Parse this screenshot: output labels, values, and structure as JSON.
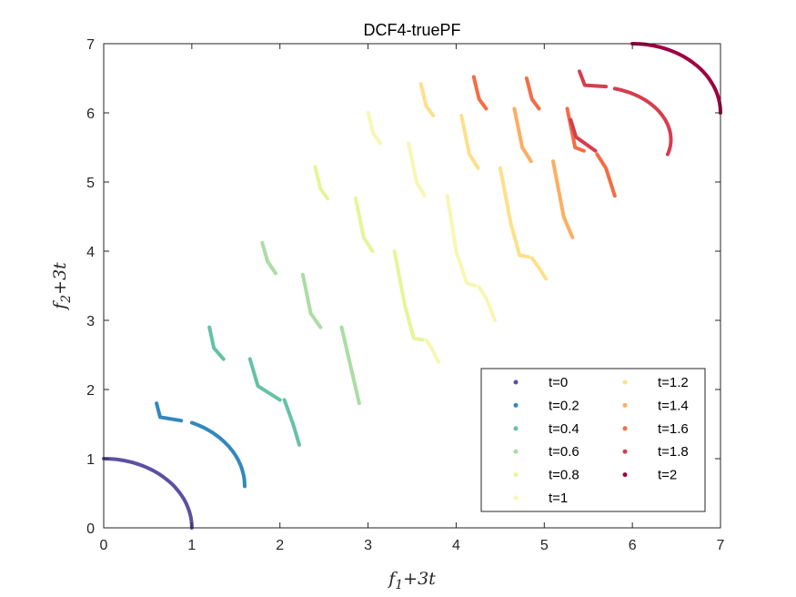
{
  "chart_data": {
    "type": "scatter",
    "title": "DCF4-truePF",
    "xlabel": {
      "main": "f",
      "sub": "1",
      "rest": "+3t"
    },
    "ylabel": {
      "main": "f",
      "sub": "2",
      "rest": "+3t"
    },
    "xlim": [
      0,
      7
    ],
    "ylim": [
      0,
      7
    ],
    "xticks": [
      0,
      1,
      2,
      3,
      4,
      5,
      6,
      7
    ],
    "yticks": [
      0,
      1,
      2,
      3,
      4,
      5,
      6,
      7
    ],
    "grid": false,
    "legend_position": "bottom-right",
    "series": [
      {
        "name": "t=0",
        "color": "#5e4fa2",
        "segments": [
          {
            "kind": "arc",
            "cx": 0.0,
            "cy": 0.0,
            "from": [
              0.0,
              1.0
            ],
            "to": [
              1.0,
              0.0
            ],
            "bulge": 1.0
          }
        ]
      },
      {
        "name": "t=0.2",
        "color": "#3288bd",
        "segments": [
          {
            "kind": "poly",
            "points": [
              [
                0.6,
                1.8
              ],
              [
                0.64,
                1.6
              ],
              [
                0.88,
                1.55
              ]
            ]
          },
          {
            "kind": "arc",
            "cx": 0.6,
            "cy": 0.6,
            "from": [
              1.0,
              1.52
            ],
            "to": [
              1.6,
              0.6
            ],
            "bulge": 1.0
          }
        ]
      },
      {
        "name": "t=0.4",
        "color": "#66c2a5",
        "segments": [
          {
            "kind": "poly",
            "points": [
              [
                1.2,
                2.9
              ],
              [
                1.25,
                2.6
              ],
              [
                1.36,
                2.44
              ]
            ]
          },
          {
            "kind": "poly",
            "points": [
              [
                1.66,
                2.44
              ],
              [
                1.75,
                2.05
              ],
              [
                2.0,
                1.85
              ]
            ]
          },
          {
            "kind": "poly",
            "points": [
              [
                2.05,
                1.85
              ],
              [
                2.15,
                1.5
              ],
              [
                2.22,
                1.2
              ]
            ]
          }
        ]
      },
      {
        "name": "t=0.6",
        "color": "#abdda4",
        "segments": [
          {
            "kind": "poly",
            "points": [
              [
                1.8,
                4.12
              ],
              [
                1.86,
                3.85
              ],
              [
                1.95,
                3.68
              ]
            ]
          },
          {
            "kind": "poly",
            "points": [
              [
                2.26,
                3.66
              ],
              [
                2.35,
                3.1
              ],
              [
                2.46,
                2.9
              ]
            ]
          },
          {
            "kind": "poly",
            "points": [
              [
                2.7,
                2.9
              ],
              [
                2.8,
                2.35
              ],
              [
                2.9,
                1.8
              ]
            ]
          }
        ]
      },
      {
        "name": "t=0.8",
        "color": "#e6f598",
        "segments": [
          {
            "kind": "poly",
            "points": [
              [
                2.4,
                5.22
              ],
              [
                2.46,
                4.9
              ],
              [
                2.54,
                4.76
              ]
            ]
          },
          {
            "kind": "poly",
            "points": [
              [
                2.86,
                4.76
              ],
              [
                2.95,
                4.2
              ],
              [
                3.05,
                4.0
              ]
            ]
          },
          {
            "kind": "poly",
            "points": [
              [
                3.3,
                4.0
              ],
              [
                3.42,
                3.2
              ],
              [
                3.52,
                2.74
              ],
              [
                3.62,
                2.72
              ]
            ]
          }
        ]
      },
      {
        "name": "t=1",
        "color": "#f7f7b4",
        "segments": [
          {
            "kind": "poly",
            "points": [
              [
                3.0,
                6.0
              ],
              [
                3.06,
                5.7
              ],
              [
                3.14,
                5.56
              ]
            ]
          },
          {
            "kind": "poly",
            "points": [
              [
                3.46,
                5.56
              ],
              [
                3.55,
                5.0
              ],
              [
                3.64,
                4.8
              ]
            ]
          },
          {
            "kind": "poly",
            "points": [
              [
                3.9,
                4.8
              ],
              [
                4.0,
                4.0
              ],
              [
                4.12,
                3.54
              ],
              [
                4.22,
                3.5
              ]
            ]
          },
          {
            "kind": "poly",
            "points": [
              [
                3.66,
                2.72
              ],
              [
                3.72,
                2.6
              ],
              [
                3.8,
                2.4
              ]
            ]
          },
          {
            "kind": "poly",
            "points": [
              [
                4.26,
                3.48
              ],
              [
                4.35,
                3.3
              ],
              [
                4.44,
                3.0
              ]
            ]
          }
        ]
      },
      {
        "name": "t=1.2",
        "color": "#fee08b",
        "segments": [
          {
            "kind": "poly",
            "points": [
              [
                3.6,
                6.42
              ],
              [
                3.66,
                6.1
              ],
              [
                3.74,
                5.96
              ]
            ]
          },
          {
            "kind": "poly",
            "points": [
              [
                4.06,
                5.96
              ],
              [
                4.15,
                5.4
              ],
              [
                4.25,
                5.2
              ]
            ]
          },
          {
            "kind": "poly",
            "points": [
              [
                4.5,
                5.2
              ],
              [
                4.62,
                4.4
              ],
              [
                4.72,
                3.94
              ],
              [
                4.82,
                3.92
              ]
            ]
          },
          {
            "kind": "poly",
            "points": [
              [
                4.86,
                3.9
              ],
              [
                4.94,
                3.76
              ],
              [
                5.02,
                3.6
              ]
            ]
          }
        ]
      },
      {
        "name": "t=1.4",
        "color": "#fdae61",
        "segments": [
          {
            "kind": "poly",
            "points": [
              [
                4.66,
                6.06
              ],
              [
                4.75,
                5.5
              ],
              [
                4.85,
                5.3
              ]
            ]
          },
          {
            "kind": "poly",
            "points": [
              [
                5.1,
                5.3
              ],
              [
                5.22,
                4.5
              ],
              [
                5.32,
                4.2
              ]
            ]
          }
        ]
      },
      {
        "name": "t=1.6",
        "color": "#f46d43",
        "segments": [
          {
            "kind": "poly",
            "points": [
              [
                4.2,
                6.52
              ],
              [
                4.26,
                6.2
              ],
              [
                4.34,
                6.06
              ]
            ]
          },
          {
            "kind": "poly",
            "points": [
              [
                4.8,
                6.5
              ],
              [
                4.86,
                6.2
              ],
              [
                4.94,
                6.06
              ]
            ]
          },
          {
            "kind": "poly",
            "points": [
              [
                5.26,
                6.06
              ],
              [
                5.35,
                5.5
              ],
              [
                5.45,
                5.45
              ]
            ]
          },
          {
            "kind": "poly",
            "points": [
              [
                5.6,
                5.4
              ],
              [
                5.7,
                5.2
              ],
              [
                5.8,
                4.8
              ]
            ]
          }
        ]
      },
      {
        "name": "t=1.8",
        "color": "#d53e4f",
        "segments": [
          {
            "kind": "poly",
            "points": [
              [
                5.4,
                6.6
              ],
              [
                5.46,
                6.4
              ],
              [
                5.7,
                6.38
              ]
            ]
          },
          {
            "kind": "arc",
            "cx": 5.8,
            "cy": 5.4,
            "from": [
              5.8,
              6.35
            ],
            "to": [
              6.4,
              5.4
            ],
            "bulge": 1.0
          },
          {
            "kind": "poly",
            "points": [
              [
                5.3,
                5.9
              ],
              [
                5.36,
                5.65
              ],
              [
                5.58,
                5.45
              ]
            ]
          }
        ]
      },
      {
        "name": "t=2",
        "color": "#9e0142",
        "segments": [
          {
            "kind": "arc",
            "cx": 6.0,
            "cy": 6.0,
            "from": [
              6.0,
              7.0
            ],
            "to": [
              7.0,
              6.0
            ],
            "bulge": 1.0
          }
        ]
      }
    ]
  }
}
